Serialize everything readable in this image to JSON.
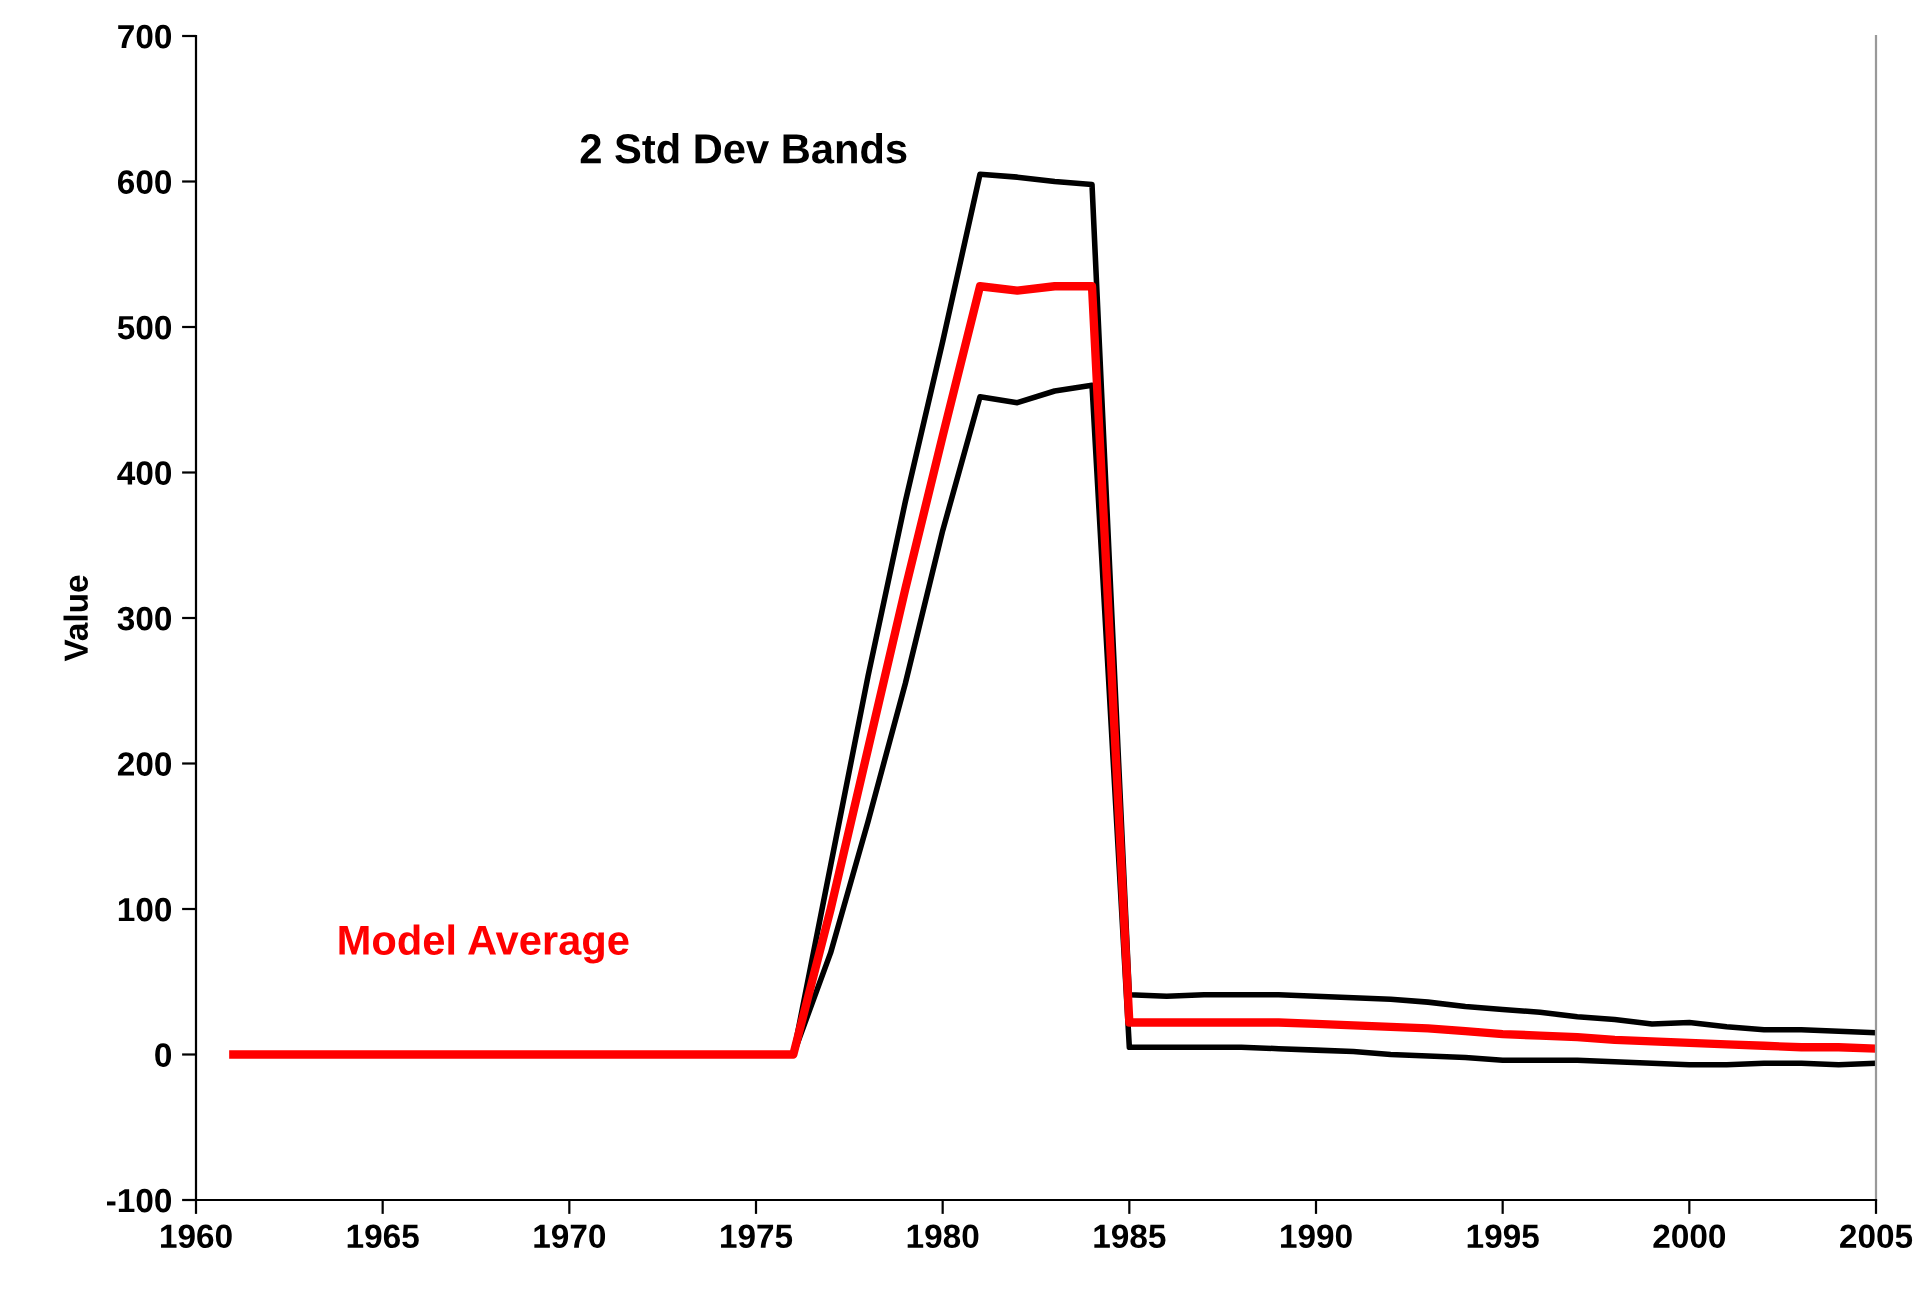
{
  "chart_data": {
    "type": "line",
    "ylabel": "Value",
    "x": [
      1961,
      1962,
      1963,
      1964,
      1965,
      1966,
      1967,
      1968,
      1969,
      1970,
      1971,
      1972,
      1973,
      1974,
      1975,
      1976,
      1977,
      1978,
      1979,
      1980,
      1981,
      1982,
      1983,
      1984,
      1985,
      1986,
      1987,
      1988,
      1989,
      1990,
      1991,
      1992,
      1993,
      1994,
      1995,
      1996,
      1997,
      1998,
      1999,
      2000,
      2001,
      2002,
      2003,
      2004,
      2005
    ],
    "series": [
      {
        "name": "2 Std Dev Bands",
        "color": "#000000",
        "values": [
          null,
          null,
          null,
          null,
          null,
          null,
          null,
          null,
          null,
          null,
          null,
          null,
          null,
          null,
          0,
          0,
          130,
          260,
          380,
          490,
          605,
          603,
          600,
          598,
          41,
          40,
          41,
          41,
          41,
          40,
          39,
          38,
          36,
          33,
          31,
          29,
          26,
          24,
          21,
          22,
          19,
          17,
          17,
          16,
          15
        ]
      },
      {
        "color": "#000000",
        "values": [
          null,
          null,
          null,
          null,
          null,
          null,
          null,
          null,
          null,
          null,
          null,
          null,
          null,
          null,
          0,
          0,
          70,
          160,
          255,
          360,
          452,
          448,
          456,
          460,
          5,
          5,
          5,
          5,
          4,
          3,
          2,
          0,
          -1,
          -2,
          -4,
          -4,
          -4,
          -5,
          -6,
          -7,
          -7,
          -6,
          -6,
          -7,
          -6
        ]
      },
      {
        "name": "Model Average",
        "color": "#ff0000",
        "values": [
          0,
          0,
          0,
          0,
          0,
          0,
          0,
          0,
          0,
          0,
          0,
          0,
          0,
          0,
          0,
          0,
          100,
          210,
          320,
          425,
          528,
          525,
          528,
          528,
          22,
          22,
          22,
          22,
          22,
          21,
          20,
          19,
          18,
          16,
          14,
          13,
          12,
          10,
          9,
          8,
          7,
          6,
          5,
          5,
          4
        ]
      }
    ],
    "xlim": [
      1960,
      2005
    ],
    "xticks": [
      1960,
      1965,
      1970,
      1975,
      1980,
      1985,
      1990,
      1995,
      2000,
      2005
    ],
    "ylim": [
      -100,
      700
    ],
    "yticks": [
      -100,
      0,
      100,
      200,
      300,
      400,
      500,
      600,
      700
    ],
    "grid": false,
    "legend": false
  }
}
